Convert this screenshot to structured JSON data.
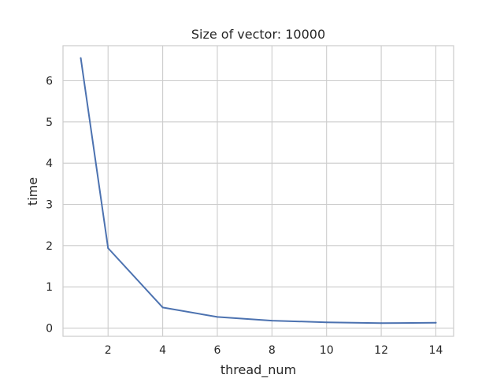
{
  "chart_data": {
    "type": "line",
    "title": "Size of vector: 10000",
    "xlabel": "thread_num",
    "ylabel": "time",
    "xlim": [
      0.35,
      14.65
    ],
    "ylim": [
      -0.2,
      6.85
    ],
    "xticks": [
      2,
      4,
      6,
      8,
      10,
      12,
      14
    ],
    "yticks": [
      0,
      1,
      2,
      3,
      4,
      5,
      6
    ],
    "grid": true,
    "series": [
      {
        "color": "#4c72b0",
        "x": [
          1,
          2,
          4,
          6,
          8,
          10,
          12,
          14
        ],
        "y": [
          6.55,
          1.94,
          0.5,
          0.27,
          0.18,
          0.14,
          0.12,
          0.13
        ]
      }
    ]
  }
}
